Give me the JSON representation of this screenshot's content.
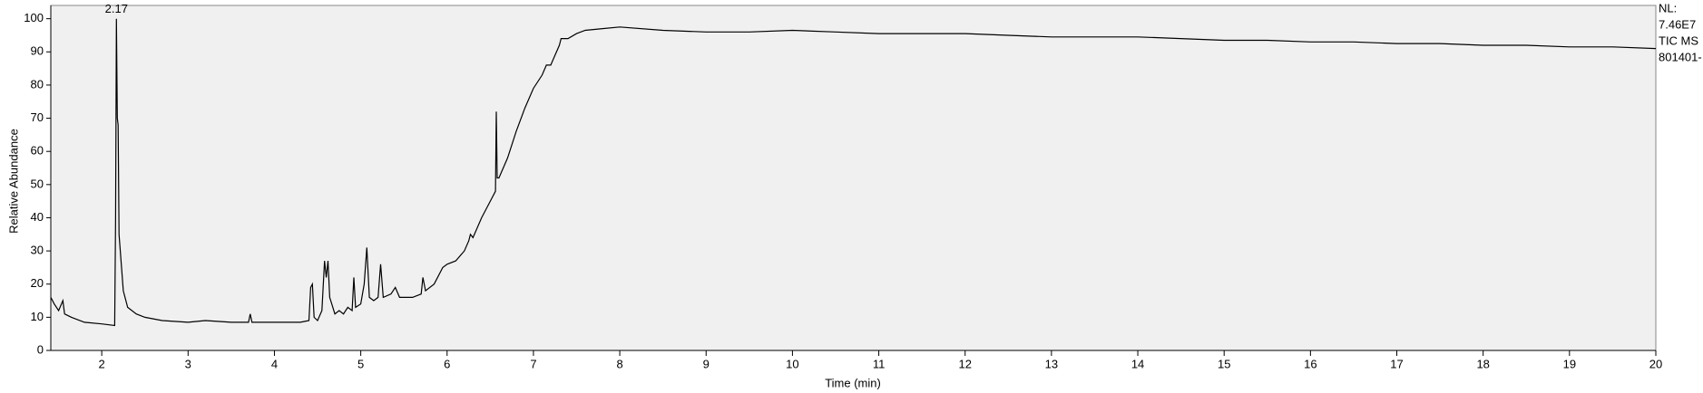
{
  "chart_data": {
    "type": "line",
    "y_label": "Relative Abundance",
    "x_label": "Time (min)",
    "peak_label": "2.17",
    "info_lines": [
      "NL:",
      "7.46E7",
      "TIC  MS",
      "801401-"
    ],
    "x": [
      1.41,
      1.45,
      1.5,
      1.55,
      1.57,
      1.65,
      1.8,
      2.0,
      2.15,
      2.16,
      2.17,
      2.18,
      2.19,
      2.2,
      2.25,
      2.3,
      2.4,
      2.5,
      2.7,
      3.0,
      3.2,
      3.5,
      3.7,
      3.72,
      3.74,
      4.0,
      4.3,
      4.4,
      4.42,
      4.44,
      4.46,
      4.5,
      4.55,
      4.58,
      4.6,
      4.62,
      4.64,
      4.7,
      4.75,
      4.8,
      4.85,
      4.9,
      4.92,
      4.94,
      5.0,
      5.04,
      5.07,
      5.1,
      5.15,
      5.2,
      5.23,
      5.26,
      5.35,
      5.4,
      5.45,
      5.6,
      5.7,
      5.72,
      5.75,
      5.85,
      5.95,
      6.0,
      6.1,
      6.2,
      6.25,
      6.27,
      6.3,
      6.4,
      6.5,
      6.56,
      6.57,
      6.58,
      6.6,
      6.7,
      6.8,
      6.9,
      7.0,
      7.1,
      7.15,
      7.2,
      7.3,
      7.32,
      7.4,
      7.5,
      7.6,
      7.8,
      8.0,
      8.5,
      9.0,
      9.5,
      10.0,
      10.5,
      11.0,
      11.5,
      12.0,
      12.5,
      13.0,
      13.5,
      14.0,
      14.5,
      15.0,
      15.5,
      16.0,
      16.5,
      17.0,
      17.5,
      18.0,
      18.5,
      19.0,
      19.5,
      20.0
    ],
    "series": [
      {
        "color": "#000000",
        "values": [
          16,
          14,
          12,
          15,
          11,
          10,
          8.5,
          8,
          7.5,
          40,
          100,
          70,
          68,
          35,
          18,
          13,
          11,
          10,
          9,
          8.5,
          9,
          8.5,
          8.5,
          11,
          8.5,
          8.5,
          8.5,
          9,
          19,
          20,
          10,
          9,
          12,
          27,
          22,
          27,
          16,
          11,
          12,
          11,
          13,
          12,
          22,
          13,
          14,
          20,
          31,
          16,
          15,
          16,
          26,
          16,
          17,
          19,
          16,
          16,
          17,
          22,
          18,
          20,
          25,
          26,
          27,
          30,
          33,
          35,
          34,
          40,
          45,
          48,
          72,
          52,
          52,
          58,
          66,
          73,
          79,
          83,
          86,
          86,
          92,
          94,
          94,
          95.5,
          96.5,
          97,
          97.5,
          96.5,
          96,
          96,
          96.5,
          96,
          95.5,
          95.5,
          95.5,
          95,
          94.5,
          94.5,
          94.5,
          94,
          93.5,
          93.5,
          93,
          93,
          92.5,
          92.5,
          92,
          92,
          91.5,
          91.5,
          91
        ]
      }
    ],
    "xlim": [
      1.41,
      20
    ],
    "ylim": [
      0,
      104
    ],
    "xticks": [
      2,
      3,
      4,
      5,
      6,
      7,
      8,
      9,
      10,
      11,
      12,
      13,
      14,
      15,
      16,
      17,
      18,
      19,
      20
    ],
    "yticks": [
      0,
      10,
      20,
      30,
      40,
      50,
      60,
      70,
      80,
      90,
      100
    ],
    "plot_background": "#f0f0f0"
  }
}
